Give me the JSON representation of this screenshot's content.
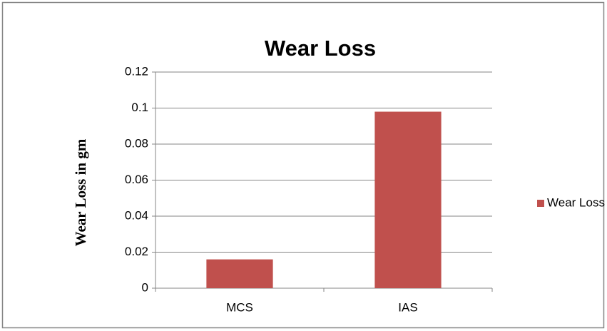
{
  "chart_data": {
    "type": "bar",
    "title": "Wear Loss",
    "y_label": "Wear  Loss in gm",
    "categories": [
      "MCS",
      "IAS"
    ],
    "series": [
      {
        "name": "Wear Loss",
        "color": "#c0504d",
        "values": [
          0.016,
          0.098
        ]
      }
    ],
    "ylim": [
      0,
      0.12
    ],
    "yticks": [
      0,
      0.02,
      0.04,
      0.06,
      0.08,
      0.1,
      0.12
    ],
    "grid": true,
    "legend": "right"
  }
}
